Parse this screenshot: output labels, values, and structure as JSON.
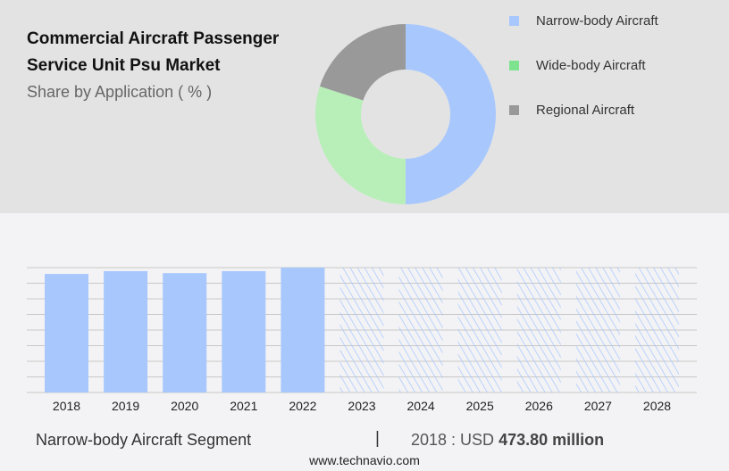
{
  "colors": {
    "narrow": "#a8c8fd",
    "wide": "#b8efb8",
    "wide_legend": "#7de38f",
    "regional": "#999999",
    "grid": "#c8c8c8"
  },
  "header": {
    "title_line1": "Commercial Aircraft Passenger",
    "title_line2": "Service Unit Psu Market",
    "subtitle": "Share by Application ( % )"
  },
  "chart_data": [
    {
      "type": "pie",
      "donut": true,
      "title": "Commercial Aircraft Passenger Service Unit Psu Market",
      "subtitle": "Share by Application ( % )",
      "legend_placement": "right",
      "slices": [
        {
          "name": "Narrow-body Aircraft",
          "value": 50
        },
        {
          "name": "Wide-body Aircraft",
          "value": 30
        },
        {
          "name": "Regional Aircraft",
          "value": 20
        }
      ]
    },
    {
      "type": "bar",
      "categories": [
        "2018",
        "2019",
        "2020",
        "2021",
        "2022",
        "2023",
        "2024",
        "2025",
        "2026",
        "2027",
        "2028"
      ],
      "values": [
        473.8,
        485,
        477,
        485,
        499,
        null,
        null,
        null,
        null,
        null,
        null
      ],
      "forecast_from": "2023",
      "ylim": [
        0,
        499
      ],
      "grid": true,
      "yticks_shown": false
    }
  ],
  "footer": {
    "segment": "Narrow-body Aircraft Segment",
    "separator": "|",
    "year_label": "2018 : USD",
    "value": "473.80 million",
    "site": "www.technavio.com"
  }
}
